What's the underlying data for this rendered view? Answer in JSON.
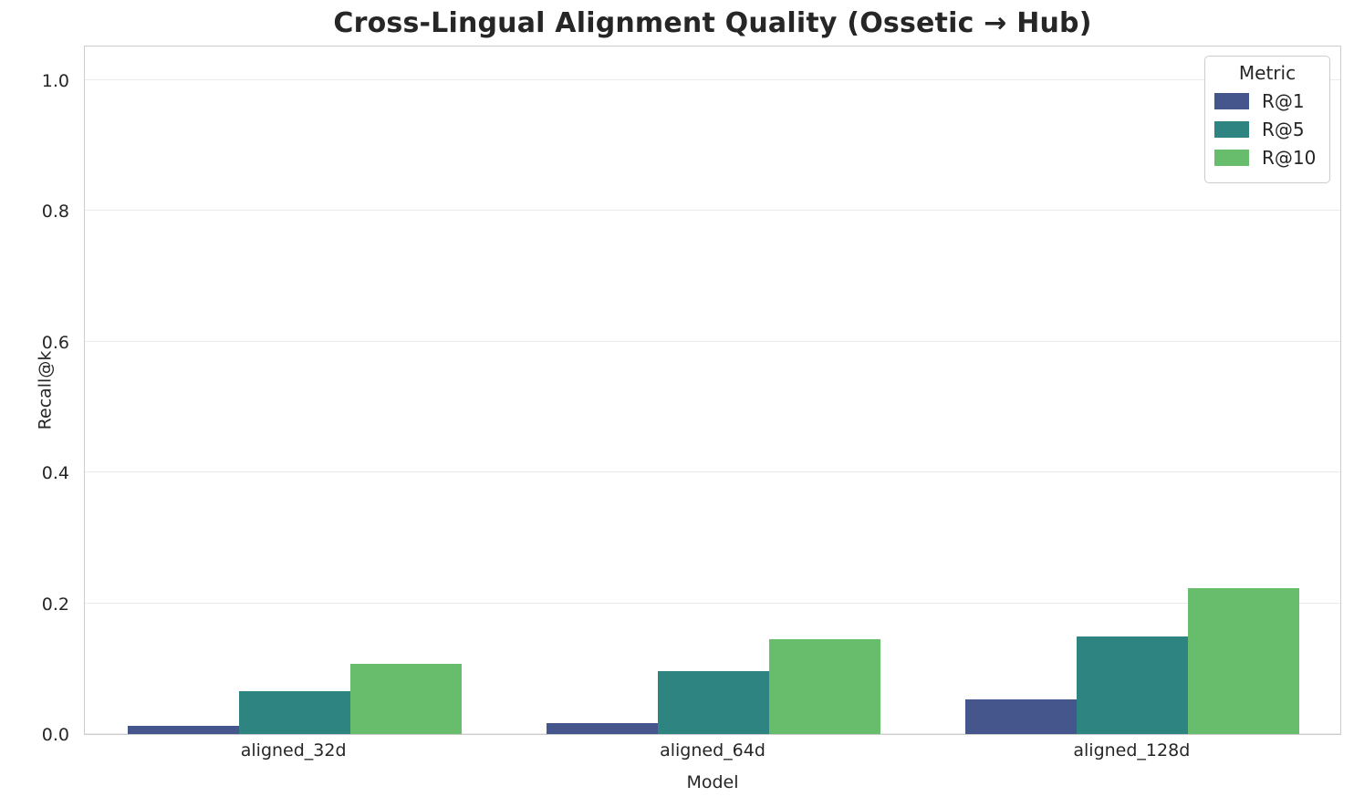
{
  "chart_data": {
    "type": "bar",
    "title": "Cross-Lingual Alignment Quality (Ossetic → Hub)",
    "xlabel": "Model",
    "ylabel": "Recall@k",
    "categories": [
      "aligned_32d",
      "aligned_64d",
      "aligned_128d"
    ],
    "series": [
      {
        "name": "R@1",
        "color": "#44568c",
        "values": [
          0.013,
          0.017,
          0.053
        ]
      },
      {
        "name": "R@5",
        "color": "#2d8480",
        "values": [
          0.065,
          0.096,
          0.149
        ]
      },
      {
        "name": "R@10",
        "color": "#67bd6c",
        "values": [
          0.108,
          0.145,
          0.223
        ]
      }
    ],
    "yticks": [
      "0.0",
      "0.2",
      "0.4",
      "0.6",
      "0.8",
      "1.0"
    ],
    "ylim": [
      0,
      1.054
    ],
    "grid": true,
    "legend_title": "Metric",
    "legend_position": "upper right"
  }
}
